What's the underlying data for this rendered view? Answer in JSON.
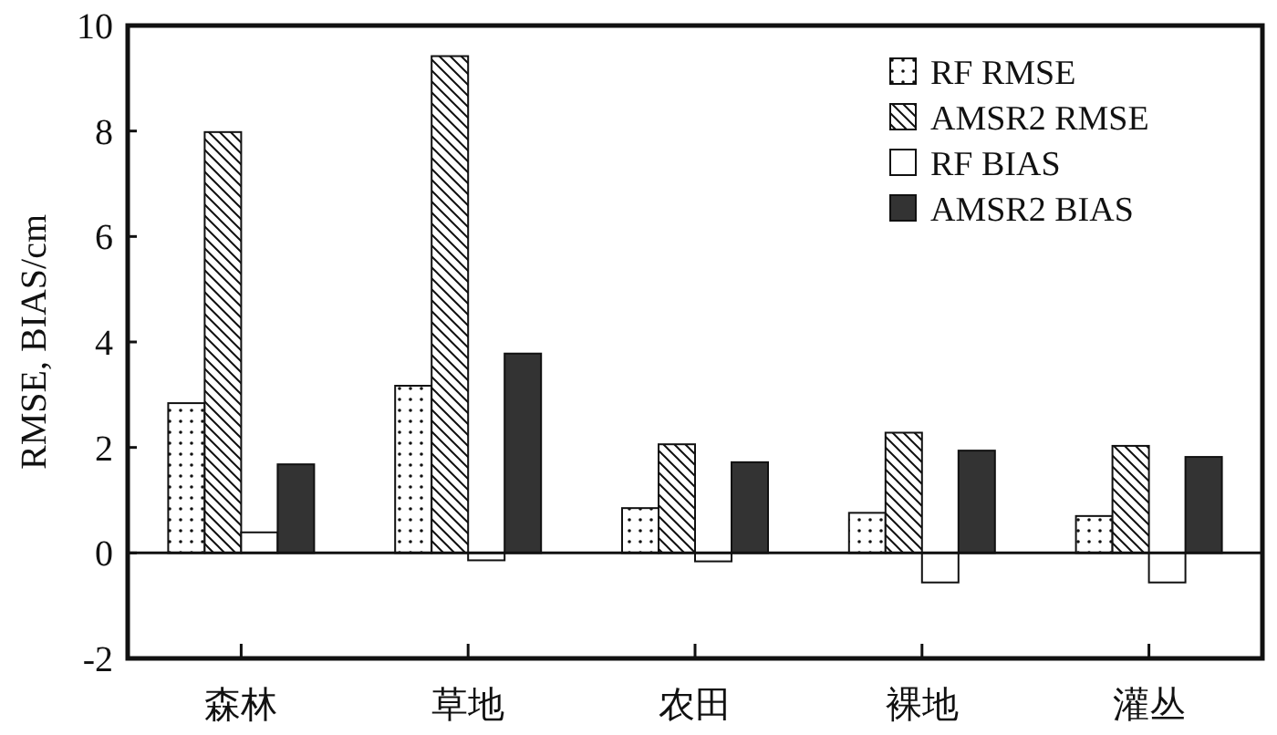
{
  "chart_data": {
    "type": "bar",
    "ylabel": "RMSE, BIAS/cm",
    "categories": [
      "森林",
      "草地",
      "农田",
      "裸地",
      "灌丛"
    ],
    "series": [
      {
        "name": "RF RMSE",
        "color": "#111111",
        "values": [
          2.84,
          3.17,
          0.85,
          0.76,
          0.7
        ]
      },
      {
        "name": "AMSR2 RMSE",
        "color": "#111111",
        "values": [
          7.98,
          9.42,
          2.06,
          2.28,
          2.03
        ]
      },
      {
        "name": "RF BIAS",
        "color": "#ffffff",
        "values": [
          0.39,
          -0.14,
          -0.16,
          -0.56,
          -0.56
        ]
      },
      {
        "name": "AMSR2 BIAS",
        "color": "#333333",
        "values": [
          1.68,
          3.78,
          1.72,
          1.94,
          1.82
        ]
      }
    ],
    "ylim": [
      -2,
      10
    ],
    "yticks": [
      -2,
      0,
      2,
      4,
      6,
      8,
      10
    ],
    "legend": "top right",
    "ref_lines": [
      {
        "axis": "y",
        "value": 0,
        "color": "#111111"
      }
    ]
  }
}
